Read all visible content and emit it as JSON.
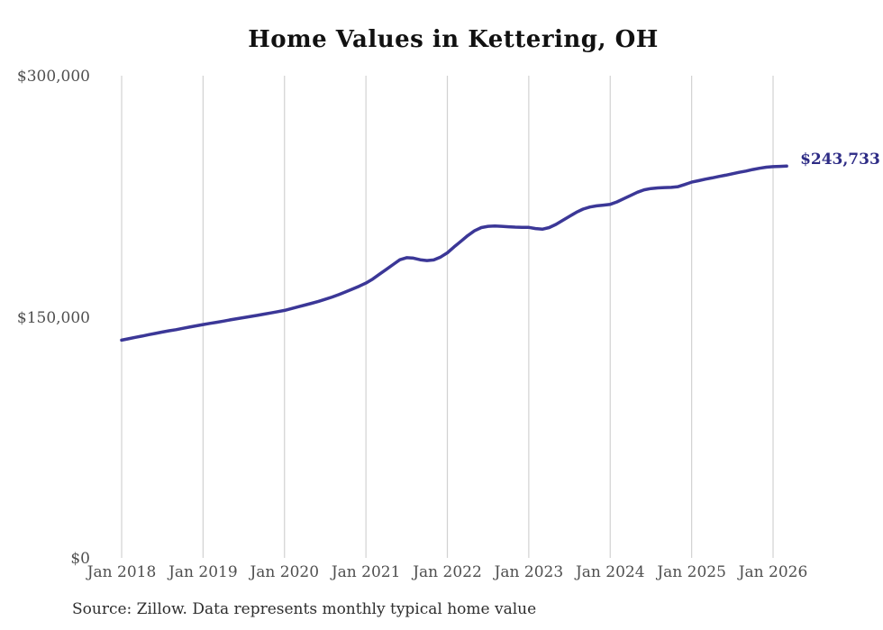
{
  "title": "Home Values in Kettering, OH",
  "source_note": "Source: Zillow. Data represents monthly typical home value",
  "colors": {
    "line": "#3b3797",
    "end_label": "#2d2b85",
    "grid": "#d2d2d2",
    "axis_text": "#4f4f4f",
    "title_text": "#111111",
    "source_text": "#2e2e2e",
    "background": "#ffffff"
  },
  "chart_data": {
    "type": "line",
    "title": "Home Values in Kettering, OH",
    "xlabel": "",
    "ylabel": "",
    "ylim": [
      0,
      300000
    ],
    "grid": "vertical-only",
    "legend": "none",
    "x_start": "Jan 2018",
    "x_interval": "monthly",
    "x_tick_labels": [
      "Jan 2018",
      "Jan 2019",
      "Jan 2020",
      "Jan 2021",
      "Jan 2022",
      "Jan 2023",
      "Jan 2024",
      "Jan 2025",
      "Jan 2026"
    ],
    "x_tick_month_indices": [
      0,
      12,
      24,
      36,
      48,
      60,
      72,
      84,
      96
    ],
    "y_ticks": [
      {
        "label": "$0",
        "value": 0
      },
      {
        "label": "$150,000",
        "value": 150000
      },
      {
        "label": "$300,000",
        "value": 300000
      }
    ],
    "series": [
      {
        "name": "Monthly typical home value",
        "end_label": "$243,733",
        "final_value": 243733,
        "values": [
          135500,
          136300,
          137200,
          138000,
          138900,
          139700,
          140500,
          141300,
          142000,
          142800,
          143600,
          144400,
          145200,
          145900,
          146600,
          147300,
          148100,
          148800,
          149500,
          150200,
          150900,
          151700,
          152400,
          153200,
          154000,
          155100,
          156200,
          157300,
          158400,
          159600,
          160900,
          162300,
          163800,
          165500,
          167200,
          169000,
          171000,
          173500,
          176500,
          179500,
          182500,
          185500,
          186800,
          186500,
          185500,
          185000,
          185400,
          187200,
          189800,
          193500,
          197000,
          200500,
          203500,
          205500,
          206300,
          206500,
          206300,
          206000,
          205800,
          205700,
          205600,
          204900,
          204500,
          205500,
          207500,
          210000,
          212500,
          215000,
          217000,
          218300,
          219000,
          219500,
          220000,
          221500,
          223500,
          225500,
          227500,
          229000,
          229800,
          230200,
          230400,
          230500,
          231000,
          232300,
          233800,
          234700,
          235600,
          236400,
          237300,
          238100,
          239000,
          239900,
          240700,
          241600,
          242400,
          243100,
          243400,
          243600,
          243733
        ]
      }
    ]
  }
}
